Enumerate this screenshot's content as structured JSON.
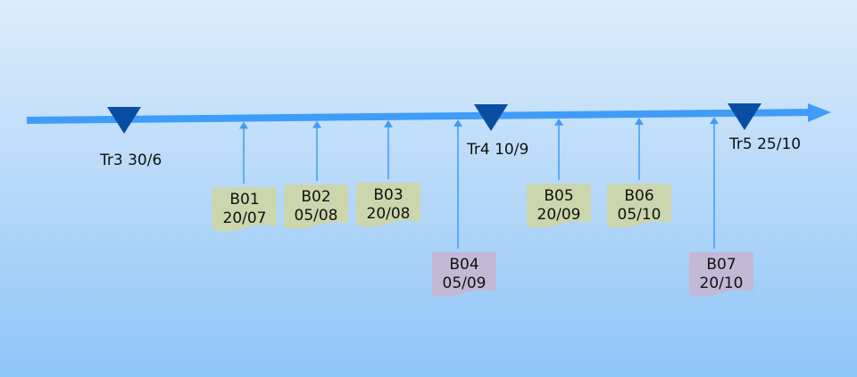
{
  "colors": {
    "axis": "#3f9cf8",
    "marker": "#0a4ea3",
    "note_a": "#ccd6ad",
    "note_b": "#c3b8d6",
    "text": "#111111"
  },
  "milestones": [
    {
      "label": "Tr3 30/6"
    },
    {
      "label": "Tr4 10/9"
    },
    {
      "label": "Tr5 25/10"
    }
  ],
  "notes": [
    {
      "code": "B01",
      "date": "20/07",
      "style": "a"
    },
    {
      "code": "B02",
      "date": "05/08",
      "style": "a"
    },
    {
      "code": "B03",
      "date": "20/08",
      "style": "a"
    },
    {
      "code": "B04",
      "date": "05/09",
      "style": "b"
    },
    {
      "code": "B05",
      "date": "20/09",
      "style": "a"
    },
    {
      "code": "B06",
      "date": "05/10",
      "style": "a"
    },
    {
      "code": "B07",
      "date": "20/10",
      "style": "b"
    }
  ]
}
